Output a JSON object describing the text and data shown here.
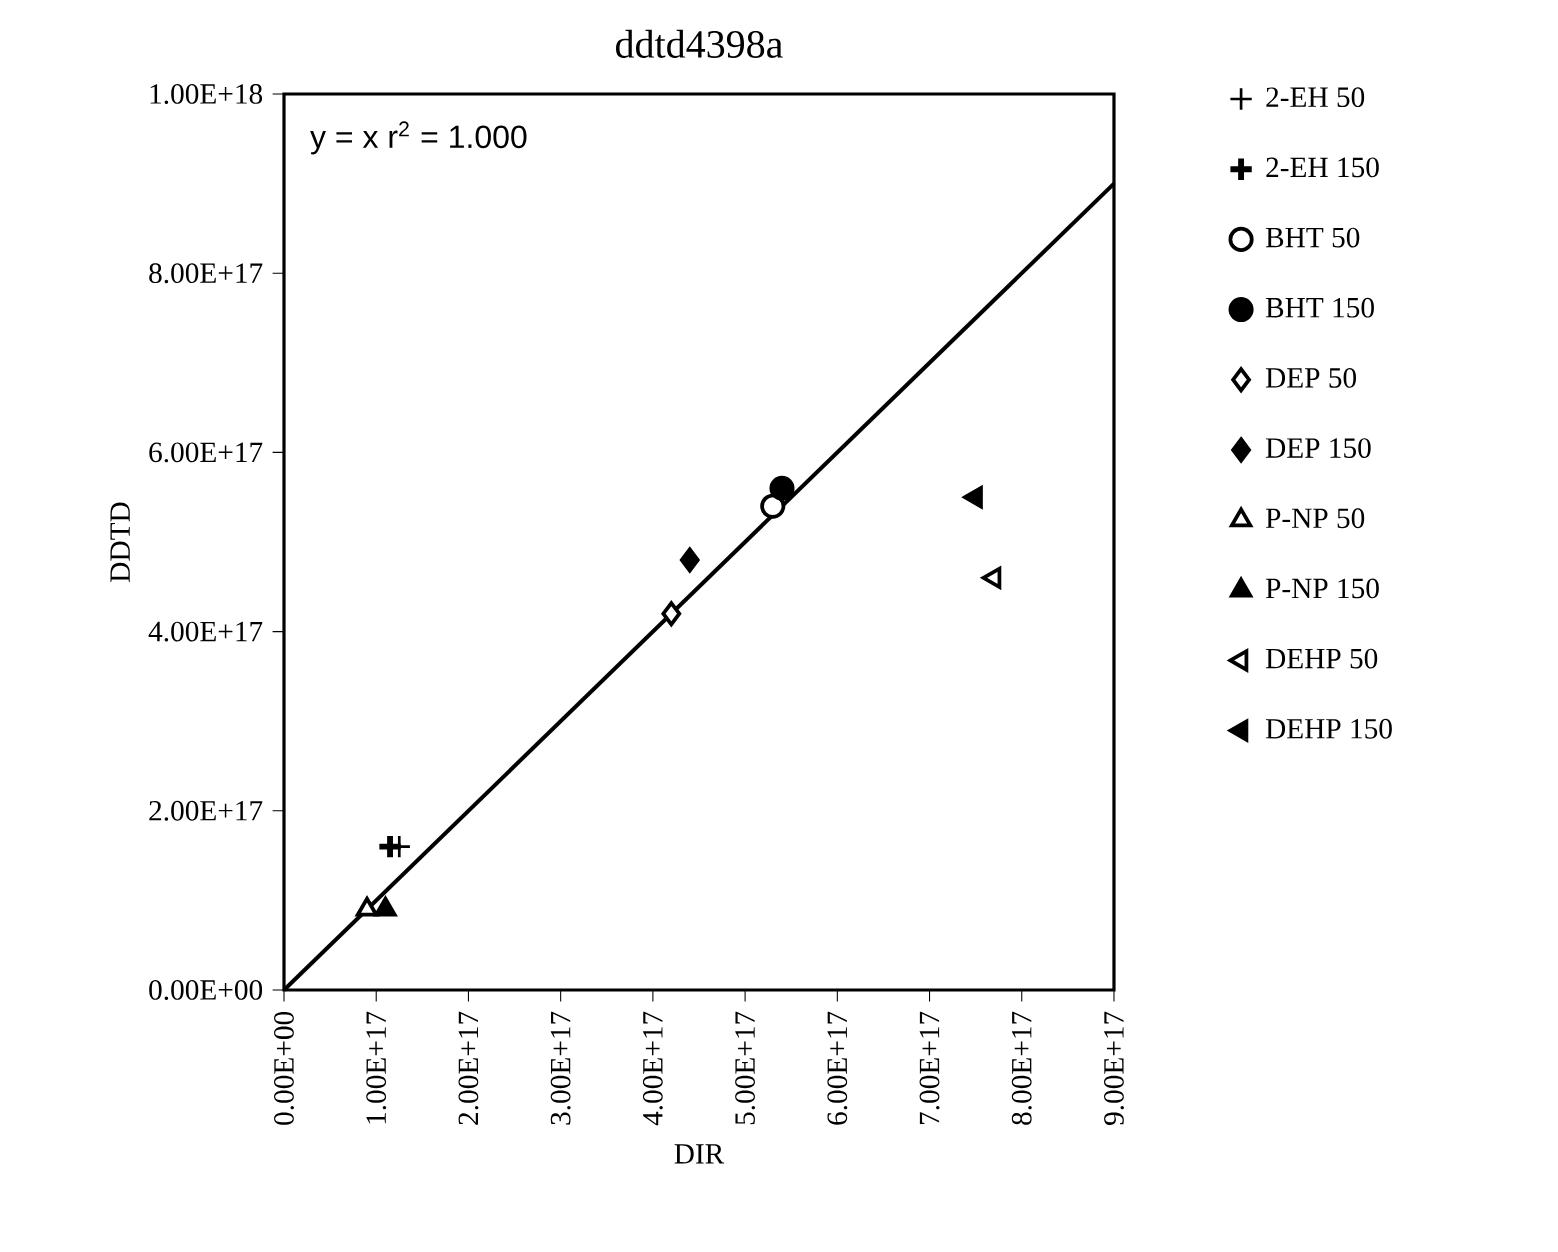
{
  "chart_data": {
    "type": "scatter",
    "title": "ddtd4398a",
    "xlabel": "DIR",
    "ylabel": "DDTD",
    "xlim": [
      0,
      9e+17
    ],
    "ylim": [
      0,
      1e+18
    ],
    "xticks": [
      {
        "value": 0,
        "label": "0.00E+00"
      },
      {
        "value": 1e+17,
        "label": "1.00E+17"
      },
      {
        "value": 2e+17,
        "label": "2.00E+17"
      },
      {
        "value": 3e+17,
        "label": "3.00E+17"
      },
      {
        "value": 4e+17,
        "label": "4.00E+17"
      },
      {
        "value": 5e+17,
        "label": "5.00E+17"
      },
      {
        "value": 6e+17,
        "label": "6.00E+17"
      },
      {
        "value": 7e+17,
        "label": "7.00E+17"
      },
      {
        "value": 8e+17,
        "label": "8.00E+17"
      },
      {
        "value": 9e+17,
        "label": "9.00E+17"
      }
    ],
    "yticks": [
      {
        "value": 0,
        "label": "0.00E+00"
      },
      {
        "value": 2e+17,
        "label": "2.00E+17"
      },
      {
        "value": 4e+17,
        "label": "4.00E+17"
      },
      {
        "value": 6e+17,
        "label": "6.00E+17"
      },
      {
        "value": 8e+17,
        "label": "8.00E+17"
      },
      {
        "value": 1e+18,
        "label": "1.00E+18"
      }
    ],
    "annotations": [
      "y = x   r$^{2}$ = 1.000"
    ],
    "legend": "right",
    "series": [
      {
        "type": "line",
        "x": [
          0,
          9e+17
        ],
        "values": [
          0,
          9e+17
        ],
        "color": "#000000",
        "marker": "none"
      },
      {
        "name": "2-EH 50",
        "x": [
          1.25e+17
        ],
        "values": [
          1.6e+17
        ],
        "color": "#000000",
        "marker": "cross"
      },
      {
        "name": "2-EH 150",
        "x": [
          1.15e+17
        ],
        "values": [
          1.6e+17
        ],
        "color": "#000000",
        "marker": "cross"
      },
      {
        "name": "BHT 50",
        "x": [
          5.3e+17
        ],
        "values": [
          5.4e+17
        ],
        "color": "#000000",
        "marker": "circle"
      },
      {
        "name": "BHT 150",
        "x": [
          5.4e+17
        ],
        "values": [
          5.6e+17
        ],
        "color": "#000000",
        "marker": "circle"
      },
      {
        "name": "DEP 50",
        "x": [
          4.2e+17
        ],
        "values": [
          4.2e+17
        ],
        "color": "#000000",
        "marker": "diamond"
      },
      {
        "name": "DEP 150",
        "x": [
          4.4e+17
        ],
        "values": [
          4.8e+17
        ],
        "color": "#000000",
        "marker": "diamond"
      },
      {
        "name": "P-NP 50",
        "x": [
          9e+16
        ],
        "values": [
          9e+16
        ],
        "color": "#000000",
        "marker": "triangle"
      },
      {
        "name": "P-NP 150",
        "x": [
          1.1e+17
        ],
        "values": [
          9e+16
        ],
        "color": "#000000",
        "marker": "triangle"
      },
      {
        "name": "DEHP 50",
        "x": [
          7.7e+17
        ],
        "values": [
          4.6e+17
        ],
        "color": "#000000",
        "marker": "triangle-left"
      },
      {
        "name": "DEHP 150",
        "x": [
          7.5e+17
        ],
        "values": [
          5.5e+17
        ],
        "color": "#000000",
        "marker": "triangle-left"
      }
    ]
  }
}
